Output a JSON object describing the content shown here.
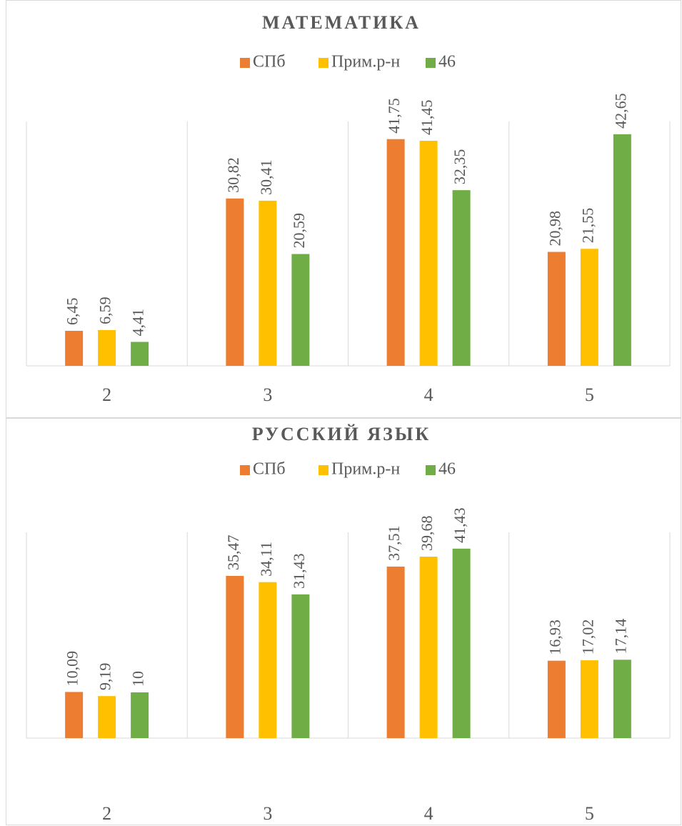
{
  "chart_data": [
    {
      "type": "bar",
      "title": "МАТЕМАТИКА",
      "categories": [
        "2",
        "3",
        "4",
        "5"
      ],
      "ylim": [
        0,
        45
      ],
      "series": [
        {
          "name": "СПб",
          "color": "#ED7D31",
          "values": [
            6.45,
            30.82,
            41.75,
            20.98
          ],
          "value_labels": [
            "6,45",
            "30,82",
            "41,75",
            "20,98"
          ]
        },
        {
          "name": "Прим.р-н",
          "color": "#FFC000",
          "values": [
            6.59,
            30.41,
            41.45,
            21.55
          ],
          "value_labels": [
            "6,59",
            "30,41",
            "41,45",
            "21,55"
          ]
        },
        {
          "name": "46",
          "color": "#70AD47",
          "values": [
            4.41,
            20.59,
            32.35,
            42.65
          ],
          "value_labels": [
            "4,41",
            "20,59",
            "32,35",
            "42,65"
          ]
        }
      ]
    },
    {
      "type": "bar",
      "title": "РУССКИЙ ЯЗЫК",
      "categories": [
        "2",
        "3",
        "4",
        "5"
      ],
      "ylim": [
        0,
        45
      ],
      "series": [
        {
          "name": "СПб",
          "color": "#ED7D31",
          "values": [
            10.09,
            35.47,
            37.51,
            16.93
          ],
          "value_labels": [
            "10,09",
            "35,47",
            "37,51",
            "16,93"
          ]
        },
        {
          "name": "Прим.р-н",
          "color": "#FFC000",
          "values": [
            9.19,
            34.11,
            39.68,
            17.02
          ],
          "value_labels": [
            "9,19",
            "34,11",
            "39,68",
            "17,02"
          ]
        },
        {
          "name": "46",
          "color": "#70AD47",
          "values": [
            10,
            31.43,
            41.43,
            17.14
          ],
          "value_labels": [
            "10",
            "31,43",
            "41,43",
            "17,14"
          ]
        }
      ]
    }
  ]
}
